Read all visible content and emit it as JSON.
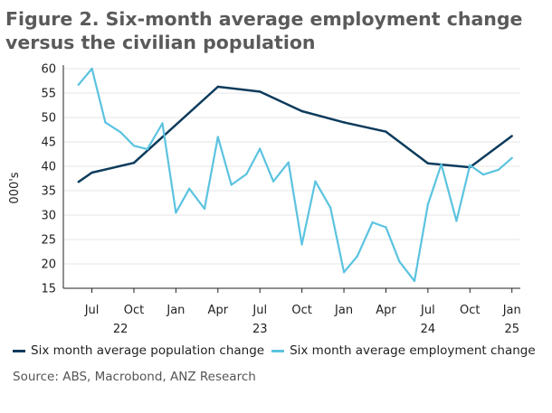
{
  "chart_data": {
    "type": "line",
    "title": "Figure 2. Six-month average employment change versus the civilian population",
    "ylabel": "000's",
    "xlabel": "",
    "ylim": [
      15,
      60
    ],
    "y_ticks": [
      15,
      20,
      25,
      30,
      35,
      40,
      45,
      50,
      55,
      60
    ],
    "x_ticks": [
      {
        "label": "Jul",
        "x": 2022.5
      },
      {
        "label": "Oct",
        "x": 2022.75
      },
      {
        "label": "Jan",
        "x": 2023.0
      },
      {
        "label": "Apr",
        "x": 2023.25
      },
      {
        "label": "Jul",
        "x": 2023.5
      },
      {
        "label": "Oct",
        "x": 2023.75
      },
      {
        "label": "Jan",
        "x": 2024.0
      },
      {
        "label": "Apr",
        "x": 2024.25
      },
      {
        "label": "Jul",
        "x": 2024.5
      },
      {
        "label": "Oct",
        "x": 2024.75
      },
      {
        "label": "Jan",
        "x": 2025.0
      }
    ],
    "year_labels": [
      {
        "label": "22",
        "x": 2022.67
      },
      {
        "label": "23",
        "x": 2023.5
      },
      {
        "label": "24",
        "x": 2024.5
      },
      {
        "label": "25",
        "x": 2025.0
      }
    ],
    "xlim": [
      2022.33,
      2025.05
    ],
    "series": [
      {
        "name": "Six month average population change",
        "color": "#0d3b5c",
        "x": [
          2022.42,
          2022.5,
          2022.75,
          2023.25,
          2023.5,
          2023.75,
          2024.0,
          2024.25,
          2024.5,
          2024.75,
          2025.0
        ],
        "values": [
          36.8,
          38.7,
          40.7,
          56.3,
          55.3,
          51.3,
          49.0,
          47.1,
          40.6,
          39.8,
          46.2
        ]
      },
      {
        "name": "Six month average employment change",
        "color": "#5bc3e0",
        "x": [
          2022.42,
          2022.5,
          2022.58,
          2022.67,
          2022.75,
          2022.83,
          2022.92,
          2023.0,
          2023.08,
          2023.17,
          2023.25,
          2023.33,
          2023.42,
          2023.5,
          2023.58,
          2023.67,
          2023.75,
          2023.83,
          2023.92,
          2024.0,
          2024.08,
          2024.17,
          2024.25,
          2024.33,
          2024.42,
          2024.5,
          2024.58,
          2024.67,
          2024.75,
          2024.83,
          2024.92,
          2025.0
        ],
        "values": [
          56.7,
          60.0,
          49.0,
          47.0,
          44.2,
          43.5,
          48.8,
          30.5,
          35.4,
          31.3,
          46.0,
          36.2,
          38.4,
          43.6,
          36.9,
          40.8,
          24.0,
          36.9,
          31.5,
          18.3,
          21.6,
          28.5,
          27.5,
          20.5,
          16.5,
          32.2,
          40.4,
          28.8,
          40.2,
          38.3,
          39.3,
          41.7
        ]
      }
    ]
  },
  "source": "Source: ABS, Macrobond, ANZ Research"
}
